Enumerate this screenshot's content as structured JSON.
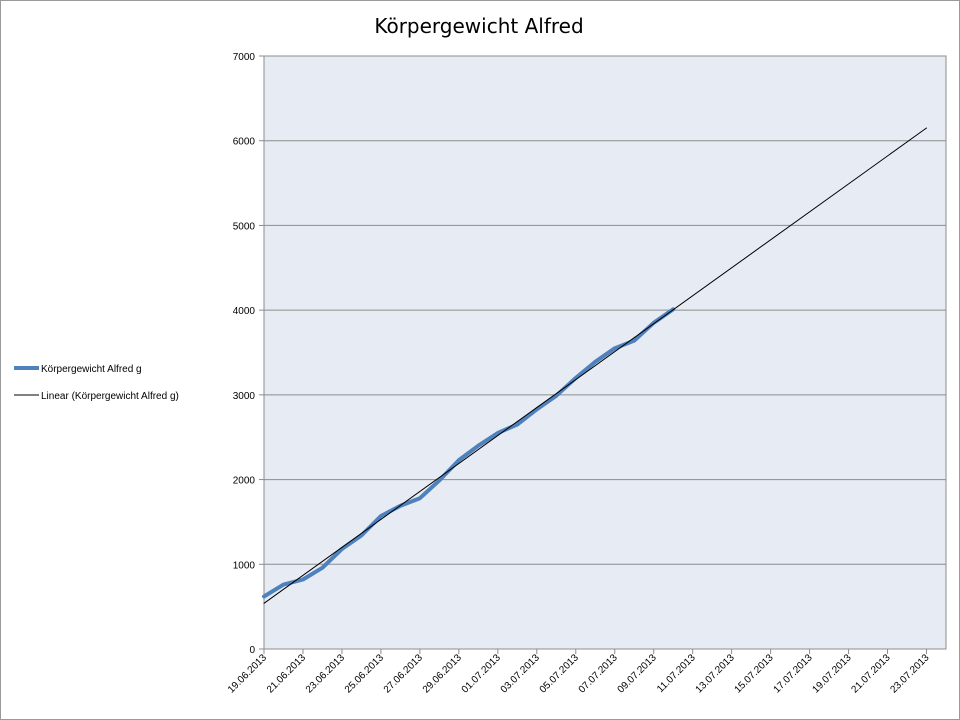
{
  "chart_data": {
    "type": "line",
    "title": "Körpergewicht Alfred",
    "xlabel": "",
    "ylabel": "",
    "ylim": [
      0,
      7000
    ],
    "yticks": [
      0,
      1000,
      2000,
      3000,
      4000,
      5000,
      6000,
      7000
    ],
    "xlim": [
      "2013-06-19",
      "2013-07-24"
    ],
    "xtick_labels": [
      "19.06.2013",
      "21.06.2013",
      "23.06.2013",
      "25.06.2013",
      "27.06.2013",
      "29.06.2013",
      "01.07.2013",
      "03.07.2013",
      "05.07.2013",
      "07.07.2013",
      "09.07.2013",
      "11.07.2013",
      "13.07.2013",
      "15.07.2013",
      "17.07.2013",
      "19.07.2013",
      "21.07.2013",
      "23.07.2013"
    ],
    "grid": true,
    "legend_position": "left",
    "series": [
      {
        "name": "Körpergewicht Alfred g",
        "color": "#4f81bd",
        "x": [
          "2013-06-19",
          "2013-06-20",
          "2013-06-21",
          "2013-06-22",
          "2013-06-23",
          "2013-06-24",
          "2013-06-25",
          "2013-06-26",
          "2013-06-27",
          "2013-06-28",
          "2013-06-29",
          "2013-06-30",
          "2013-07-01",
          "2013-07-02",
          "2013-07-03",
          "2013-07-04",
          "2013-07-05",
          "2013-07-06",
          "2013-07-07",
          "2013-07-08",
          "2013-07-09",
          "2013-07-10"
        ],
        "y": [
          620,
          760,
          820,
          960,
          1180,
          1340,
          1570,
          1690,
          1780,
          1990,
          2230,
          2400,
          2550,
          2650,
          2830,
          2990,
          3200,
          3390,
          3550,
          3640,
          3850,
          4010
        ]
      },
      {
        "name": "Linear (Körpergewicht Alfred g)",
        "color": "#000000",
        "trendline": true,
        "x": [
          "2013-06-19",
          "2013-07-23"
        ],
        "y": [
          540,
          6150
        ]
      }
    ]
  }
}
